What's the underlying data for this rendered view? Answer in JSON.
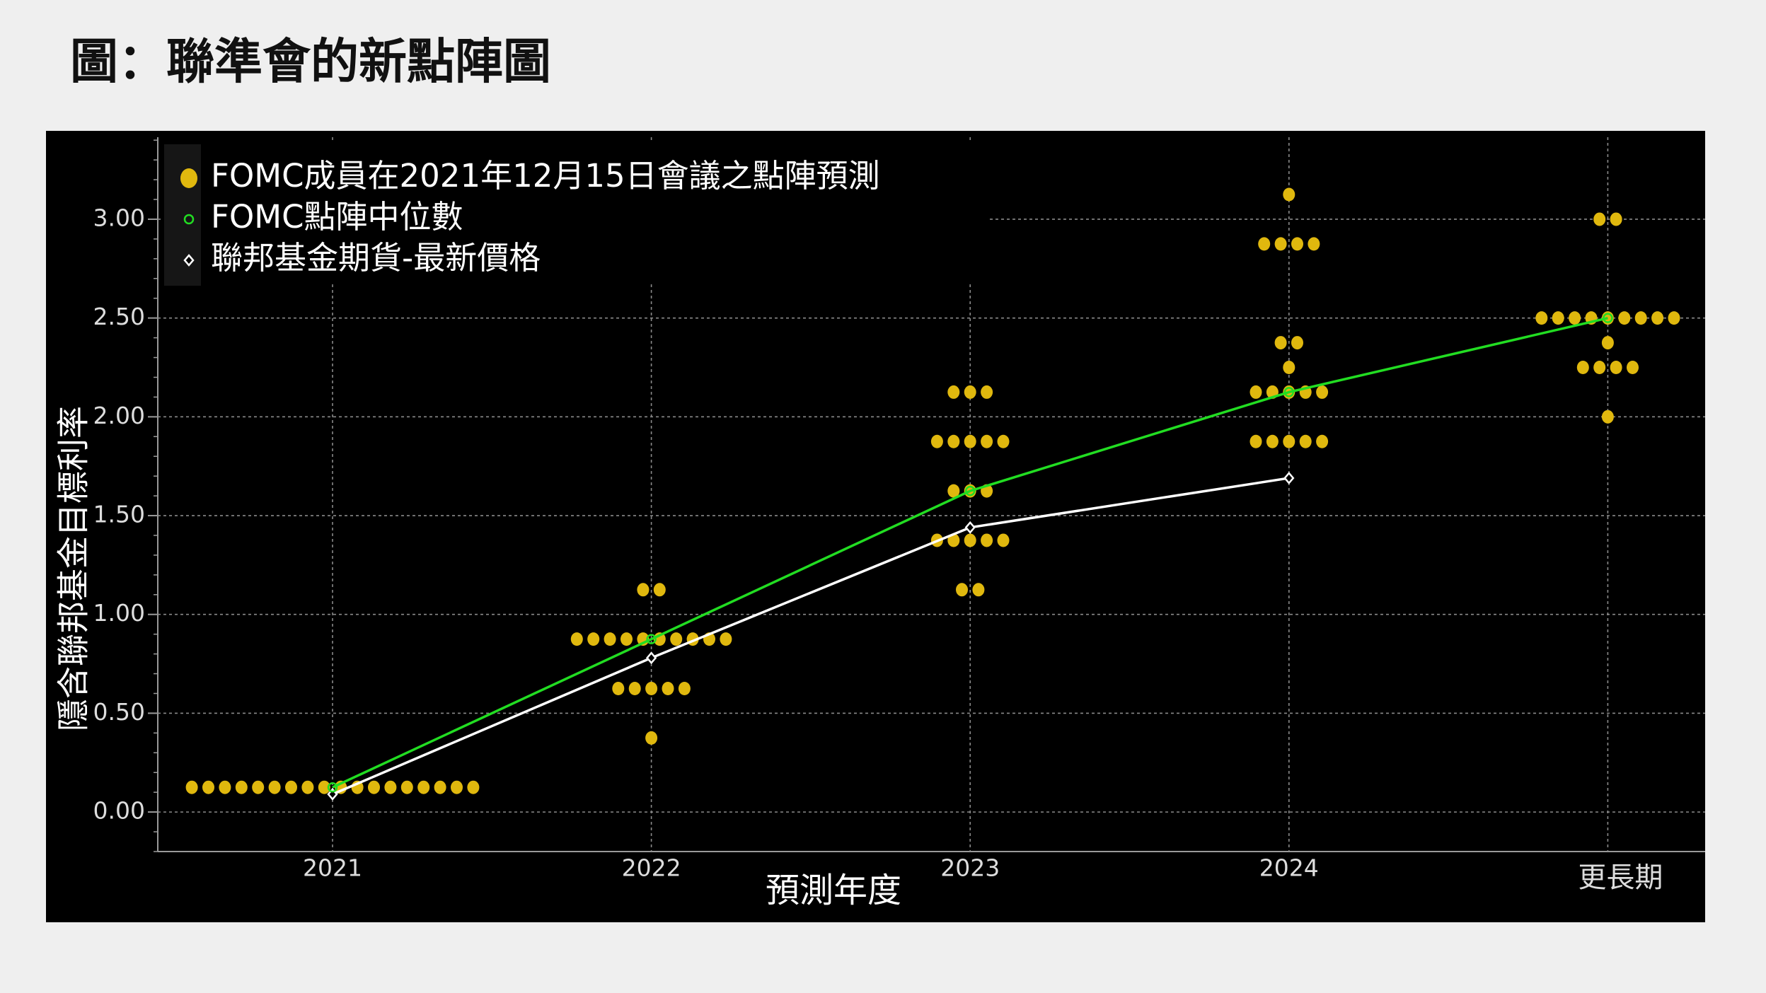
{
  "chart_data": {
    "type": "dotplot",
    "title": "圖：聯準會的新點陣圖",
    "xlabel": "預測年度",
    "ylabel": "隱含聯邦基金目標利率",
    "categories": [
      "2021",
      "2022",
      "2023",
      "2024",
      "更長期"
    ],
    "ylim": [
      -0.2,
      3.415
    ],
    "yticks": [
      {
        "value": 0,
        "label": "0.00"
      },
      {
        "value": 0.5,
        "label": "0.50"
      },
      {
        "value": 1,
        "label": "1.00"
      },
      {
        "value": 1.5,
        "label": "1.50"
      },
      {
        "value": 2,
        "label": "2.00"
      },
      {
        "value": 2.5,
        "label": "2.50"
      },
      {
        "value": 3,
        "label": "3.00"
      }
    ],
    "grid": true,
    "series": [
      {
        "name": "FOMC成員在2021年12月15日會議之點陣預測",
        "color": "#e0b80e",
        "marker": "dot",
        "values": [
          [
            0.125,
            0.125,
            0.125,
            0.125,
            0.125,
            0.125,
            0.125,
            0.125,
            0.125,
            0.125,
            0.125,
            0.125,
            0.125,
            0.125,
            0.125,
            0.125,
            0.125,
            0.125
          ],
          [
            1.125,
            1.125,
            0.875,
            0.875,
            0.875,
            0.875,
            0.875,
            0.875,
            0.875,
            0.875,
            0.875,
            0.875,
            0.625,
            0.625,
            0.625,
            0.625,
            0.625,
            0.375
          ],
          [
            2.125,
            2.125,
            2.125,
            1.875,
            1.875,
            1.875,
            1.875,
            1.875,
            1.625,
            1.625,
            1.625,
            1.375,
            1.375,
            1.375,
            1.375,
            1.375,
            1.125,
            1.125
          ],
          [
            3.125,
            2.875,
            2.875,
            2.875,
            2.875,
            2.375,
            2.375,
            2.25,
            2.125,
            2.125,
            2.125,
            2.125,
            2.125,
            1.875,
            1.875,
            1.875,
            1.875,
            1.875
          ],
          [
            3,
            3,
            2.5,
            2.5,
            2.5,
            2.5,
            2.5,
            2.5,
            2.5,
            2.5,
            2.5,
            2.375,
            2.25,
            2.25,
            2.25,
            2.25,
            2
          ]
        ]
      },
      {
        "name": "FOMC點陣中位數",
        "color": "#22dd22",
        "marker": "circle",
        "values": [
          0.125,
          0.875,
          1.625,
          2.125,
          2.5
        ]
      },
      {
        "name": "聯邦基金期貨-最新價格",
        "color": "#ffffff",
        "marker": "diamond",
        "values": [
          0.09,
          0.78,
          1.44,
          1.69,
          null
        ]
      }
    ]
  }
}
